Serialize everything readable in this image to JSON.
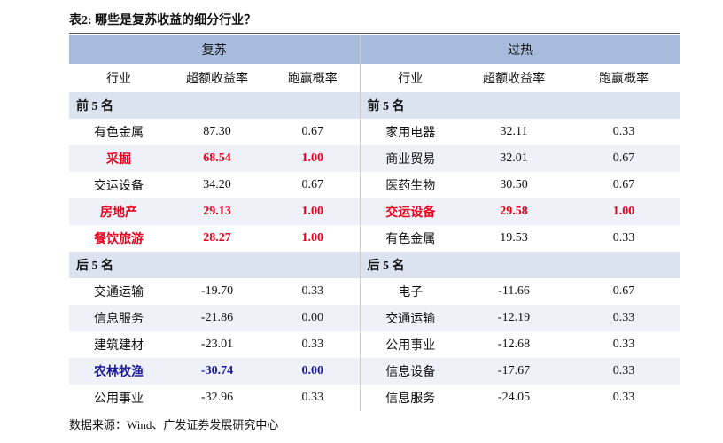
{
  "header": {
    "title": "表2:  哪些是复苏收益的细分行业？"
  },
  "table": {
    "groups": [
      "复苏",
      "过热"
    ],
    "columns": [
      "行业",
      "超额收益率",
      "跑赢概率",
      "行业",
      "超额收益率",
      "跑赢概率"
    ],
    "sections": [
      {
        "labels": [
          "前 5 名",
          "前 5 名"
        ],
        "rows": [
          {
            "left": [
              "有色金属",
              "87.30",
              "0.67"
            ],
            "right": [
              "家用电器",
              "32.11",
              "0.33"
            ]
          },
          {
            "left": [
              "采掘",
              "68.54",
              "1.00"
            ],
            "left_color": "#e8001c",
            "right": [
              "商业贸易",
              "32.01",
              "0.67"
            ]
          },
          {
            "left": [
              "交运设备",
              "34.20",
              "0.67"
            ],
            "right": [
              "医药生物",
              "30.50",
              "0.67"
            ]
          },
          {
            "left": [
              "房地产",
              "29.13",
              "1.00"
            ],
            "left_color": "#e8001c",
            "right": [
              "交运设备",
              "29.58",
              "1.00"
            ],
            "right_color": "#e8001c"
          },
          {
            "left": [
              "餐饮旅游",
              "28.27",
              "1.00"
            ],
            "left_color": "#e8001c",
            "right": [
              "有色金属",
              "19.53",
              "0.33"
            ]
          }
        ]
      },
      {
        "labels": [
          "后 5 名",
          "后 5 名"
        ],
        "rows": [
          {
            "left": [
              "交通运输",
              "-19.70",
              "0.33"
            ],
            "right": [
              "电子",
              "-11.66",
              "0.67"
            ]
          },
          {
            "left": [
              "信息服务",
              "-21.86",
              "0.00"
            ],
            "right": [
              "交通运输",
              "-12.19",
              "0.33"
            ]
          },
          {
            "left": [
              "建筑建材",
              "-23.01",
              "0.33"
            ],
            "right": [
              "公用事业",
              "-12.68",
              "0.33"
            ]
          },
          {
            "left": [
              "农林牧渔",
              "-30.74",
              "0.00"
            ],
            "left_color": "#1a1a9a",
            "right": [
              "信息设备",
              "-17.67",
              "0.33"
            ]
          },
          {
            "left": [
              "公用事业",
              "-32.96",
              "0.33"
            ],
            "right": [
              "信息服务",
              "-24.05",
              "0.33"
            ]
          }
        ]
      }
    ]
  },
  "footer": {
    "source": "数据来源：Wind、广发证券发展研究中心"
  }
}
